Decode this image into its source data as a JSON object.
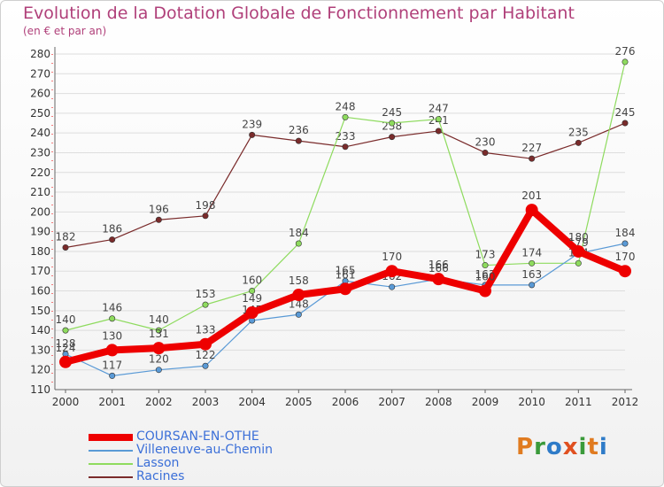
{
  "header": {
    "title": "Evolution de la Dotation Globale de Fonctionnement par Habitant",
    "subtitle": "(en € et par an)"
  },
  "branding": {
    "letters": [
      "P",
      "r",
      "o",
      "x",
      "i",
      "t",
      "i"
    ],
    "letter_colors": [
      "#e07b20",
      "#3a9a3a",
      "#2e7bc8",
      "#e05020",
      "#3a9a3a",
      "#e07b20",
      "#2e7bc8"
    ]
  },
  "chart_data": {
    "type": "line",
    "title": "Evolution de la Dotation Globale de Fonctionnement par Habitant",
    "subtitle": "(en € et par an)",
    "xlabel": "",
    "ylabel": "",
    "categories": [
      "2000",
      "2001",
      "2002",
      "2003",
      "2004",
      "2005",
      "2006",
      "2007",
      "2008",
      "2009",
      "2010",
      "2011",
      "2012"
    ],
    "ylim": [
      110,
      280
    ],
    "yticks": [
      110,
      120,
      130,
      140,
      150,
      160,
      170,
      180,
      190,
      200,
      210,
      220,
      230,
      240,
      250,
      260,
      270,
      280
    ],
    "grid": true,
    "legend_position": "bottom-left",
    "series": [
      {
        "name": "Racines",
        "color": "#7a2b2b",
        "width": 1.2,
        "values": [
          182,
          186,
          196,
          198,
          239,
          236,
          233,
          238,
          241,
          230,
          227,
          235,
          245
        ],
        "labels": [
          "182",
          "186",
          "196",
          "198",
          "239",
          "236",
          "233",
          "238",
          "241",
          "230",
          "227",
          "235",
          "245"
        ]
      },
      {
        "name": "Lasson",
        "color": "#8edb5e",
        "width": 1.2,
        "values": [
          140,
          146,
          140,
          153,
          160,
          184,
          248,
          245,
          247,
          173,
          174,
          174,
          276
        ],
        "labels": [
          "140",
          "146",
          "140",
          "153",
          "160",
          "184",
          "248",
          "245",
          "247",
          "173",
          "174",
          "174",
          "276"
        ]
      },
      {
        "name": "Villeneuve-au-Chemin",
        "color": "#5a9ad6",
        "width": 1.2,
        "values": [
          128,
          117,
          120,
          122,
          145,
          148,
          165,
          162,
          166,
          163,
          163,
          179,
          184
        ],
        "labels": [
          "128",
          "117",
          "120",
          "122",
          "145",
          "148",
          "165",
          "162",
          "166",
          "163",
          "163",
          "179",
          "184"
        ]
      },
      {
        "name": "COURSAN-EN-OTHE",
        "color": "#ee0000",
        "width": 8,
        "values": [
          124,
          130,
          131,
          133,
          149,
          158,
          161,
          170,
          166,
          160,
          201,
          180,
          170
        ],
        "labels": [
          "124",
          "130",
          "131",
          "133",
          "149",
          "158",
          "161",
          "170",
          "166",
          "160",
          "201",
          "180",
          "170"
        ]
      }
    ],
    "legend": [
      {
        "name": "COURSAN-EN-OTHE",
        "color": "#ee0000"
      },
      {
        "name": "Villeneuve-au-Chemin",
        "color": "#5a9ad6"
      },
      {
        "name": "Lasson",
        "color": "#8edb5e"
      },
      {
        "name": "Racines",
        "color": "#7a2b2b"
      }
    ]
  }
}
